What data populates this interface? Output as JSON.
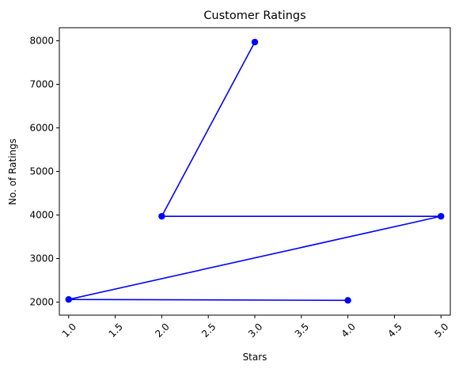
{
  "chart_data": {
    "type": "line",
    "title": "Customer Ratings",
    "xlabel": "Stars",
    "ylabel": "No. of Ratings",
    "xlim": [
      0.9,
      5.1
    ],
    "ylim": [
      1700,
      8300
    ],
    "xticks": [
      1.0,
      1.5,
      2.0,
      2.5,
      3.0,
      3.5,
      4.0,
      4.5,
      5.0
    ],
    "xtick_labels": [
      "1.0",
      "1.5",
      "2.0",
      "2.5",
      "3.0",
      "3.5",
      "4.0",
      "4.5",
      "5.0"
    ],
    "yticks": [
      2000,
      3000,
      4000,
      5000,
      6000,
      7000,
      8000
    ],
    "ytick_labels": [
      "2000",
      "3000",
      "4000",
      "5000",
      "6000",
      "7000",
      "8000"
    ],
    "grid": false,
    "legend": "none",
    "series": [
      {
        "color": "#0000ff",
        "marker": "circle",
        "x": [
          3,
          2,
          5,
          1,
          4
        ],
        "y": [
          7970,
          3970,
          3970,
          2060,
          2040
        ]
      }
    ]
  }
}
